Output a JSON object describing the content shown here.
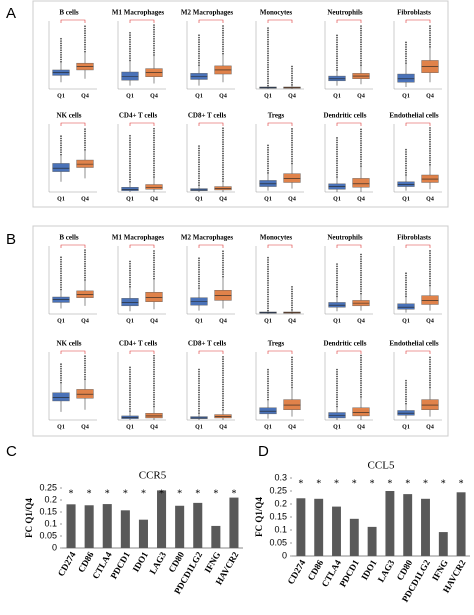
{
  "panel_labels": [
    "A",
    "B",
    "C",
    "D"
  ],
  "chart_data": [
    {
      "type": "box",
      "title": "B cells",
      "categories": [
        "Q1",
        "Q4"
      ],
      "ylim": [
        0,
        1
      ],
      "boxes": [
        {
          "color": "#4a72b8",
          "values": [
            0.1,
            0.2,
            0.24,
            0.28,
            0.4,
            0.75
          ]
        },
        {
          "color": "#e0824a",
          "values": [
            0.15,
            0.28,
            0.33,
            0.38,
            0.55,
            0.95
          ]
        }
      ]
    },
    {
      "type": "box",
      "title": "M1 Macrophages",
      "categories": [
        "Q1",
        "Q4"
      ],
      "ylim": [
        0,
        1
      ],
      "boxes": [
        {
          "color": "#4a72b8",
          "values": [
            0.05,
            0.13,
            0.18,
            0.25,
            0.42,
            0.85
          ]
        },
        {
          "color": "#e0824a",
          "values": [
            0.08,
            0.18,
            0.24,
            0.3,
            0.5,
            0.95
          ]
        }
      ]
    },
    {
      "type": "box",
      "title": "M2 Macrophages",
      "categories": [
        "Q1",
        "Q4"
      ],
      "ylim": [
        0,
        1
      ],
      "boxes": [
        {
          "color": "#4a72b8",
          "values": [
            0.05,
            0.14,
            0.18,
            0.23,
            0.35,
            0.8
          ]
        },
        {
          "color": "#e0824a",
          "values": [
            0.1,
            0.22,
            0.28,
            0.34,
            0.52,
            0.95
          ]
        }
      ]
    },
    {
      "type": "box",
      "title": "Monocytes",
      "categories": [
        "Q1",
        "Q4"
      ],
      "ylim": [
        0,
        1
      ],
      "boxes": [
        {
          "color": "#4a72b8",
          "values": [
            0,
            0.01,
            0.02,
            0.03,
            0.05,
            0.9
          ]
        },
        {
          "color": "#e0824a",
          "values": [
            0,
            0.01,
            0.02,
            0.03,
            0.06,
            0.35
          ]
        }
      ]
    },
    {
      "type": "box",
      "title": "Neutrophils",
      "categories": [
        "Q1",
        "Q4"
      ],
      "ylim": [
        0,
        1
      ],
      "boxes": [
        {
          "color": "#4a72b8",
          "values": [
            0.05,
            0.12,
            0.15,
            0.19,
            0.28,
            0.8
          ]
        },
        {
          "color": "#e0824a",
          "values": [
            0.07,
            0.15,
            0.19,
            0.23,
            0.35,
            0.95
          ]
        }
      ]
    },
    {
      "type": "box",
      "title": "Fibroblasts",
      "categories": [
        "Q1",
        "Q4"
      ],
      "ylim": [
        0,
        1
      ],
      "boxes": [
        {
          "color": "#4a72b8",
          "values": [
            0.03,
            0.1,
            0.15,
            0.22,
            0.38,
            0.7
          ]
        },
        {
          "color": "#e0824a",
          "values": [
            0.1,
            0.24,
            0.33,
            0.42,
            0.62,
            0.95
          ]
        }
      ]
    },
    {
      "type": "box",
      "title": "NK cells",
      "categories": [
        "Q1",
        "Q4"
      ],
      "ylim": [
        0,
        1
      ],
      "boxes": [
        {
          "color": "#4a72b8",
          "values": [
            0.15,
            0.3,
            0.35,
            0.42,
            0.55,
            0.85
          ]
        },
        {
          "color": "#e0824a",
          "values": [
            0.2,
            0.36,
            0.41,
            0.47,
            0.62,
            0.95
          ]
        }
      ]
    },
    {
      "type": "box",
      "title": "CD4+ T cells",
      "categories": [
        "Q1",
        "Q4"
      ],
      "ylim": [
        0,
        1
      ],
      "boxes": [
        {
          "color": "#4a72b8",
          "values": [
            0,
            0.02,
            0.04,
            0.07,
            0.15,
            0.85
          ]
        },
        {
          "color": "#e0824a",
          "values": [
            0,
            0.04,
            0.07,
            0.11,
            0.22,
            0.95
          ]
        }
      ]
    },
    {
      "type": "box",
      "title": "CD8+ T cells",
      "categories": [
        "Q1",
        "Q4"
      ],
      "ylim": [
        0,
        1
      ],
      "boxes": [
        {
          "color": "#4a72b8",
          "values": [
            0,
            0.02,
            0.03,
            0.05,
            0.1,
            0.7
          ]
        },
        {
          "color": "#e0824a",
          "values": [
            0,
            0.03,
            0.05,
            0.08,
            0.16,
            0.95
          ]
        }
      ]
    },
    {
      "type": "box",
      "title": "Tregs",
      "categories": [
        "Q1",
        "Q4"
      ],
      "ylim": [
        0,
        1
      ],
      "boxes": [
        {
          "color": "#4a72b8",
          "values": [
            0.02,
            0.08,
            0.12,
            0.17,
            0.28,
            0.7
          ]
        },
        {
          "color": "#e0824a",
          "values": [
            0.05,
            0.14,
            0.2,
            0.27,
            0.42,
            0.95
          ]
        }
      ]
    },
    {
      "type": "box",
      "title": "Dendritic cells",
      "categories": [
        "Q1",
        "Q4"
      ],
      "ylim": [
        0,
        1
      ],
      "boxes": [
        {
          "color": "#4a72b8",
          "values": [
            0,
            0.04,
            0.08,
            0.12,
            0.22,
            0.8
          ]
        },
        {
          "color": "#e0824a",
          "values": [
            0,
            0.07,
            0.12,
            0.2,
            0.38,
            0.95
          ]
        }
      ]
    },
    {
      "type": "box",
      "title": "Endothelial cells",
      "categories": [
        "Q1",
        "Q4"
      ],
      "ylim": [
        0,
        1
      ],
      "boxes": [
        {
          "color": "#4a72b8",
          "values": [
            0.02,
            0.08,
            0.11,
            0.15,
            0.25,
            0.65
          ]
        },
        {
          "color": "#e0824a",
          "values": [
            0.04,
            0.14,
            0.19,
            0.25,
            0.4,
            0.95
          ]
        }
      ]
    },
    {
      "type": "box",
      "title": "B cells",
      "categories": [
        "Q1",
        "Q4"
      ],
      "ylim": [
        0,
        1
      ],
      "boxes": [
        {
          "color": "#4a72b8",
          "values": [
            0.08,
            0.17,
            0.21,
            0.25,
            0.36,
            0.85
          ]
        },
        {
          "color": "#e0824a",
          "values": [
            0.12,
            0.24,
            0.29,
            0.34,
            0.5,
            0.95
          ]
        }
      ]
    },
    {
      "type": "box",
      "title": "M1 Macrophages",
      "categories": [
        "Q1",
        "Q4"
      ],
      "ylim": [
        0,
        1
      ],
      "boxes": [
        {
          "color": "#4a72b8",
          "values": [
            0.04,
            0.12,
            0.17,
            0.23,
            0.4,
            0.8
          ]
        },
        {
          "color": "#e0824a",
          "values": [
            0.07,
            0.18,
            0.24,
            0.32,
            0.52,
            0.95
          ]
        }
      ]
    },
    {
      "type": "box",
      "title": "M2 Macrophages",
      "categories": [
        "Q1",
        "Q4"
      ],
      "ylim": [
        0,
        1
      ],
      "boxes": [
        {
          "color": "#4a72b8",
          "values": [
            0.05,
            0.13,
            0.18,
            0.24,
            0.38,
            0.85
          ]
        },
        {
          "color": "#e0824a",
          "values": [
            0.08,
            0.2,
            0.27,
            0.35,
            0.55,
            0.95
          ]
        }
      ]
    },
    {
      "type": "box",
      "title": "Monocytes",
      "categories": [
        "Q1",
        "Q4"
      ],
      "ylim": [
        0,
        1
      ],
      "boxes": [
        {
          "color": "#4a72b8",
          "values": [
            0,
            0.01,
            0.02,
            0.03,
            0.05,
            0.85
          ]
        },
        {
          "color": "#e0824a",
          "values": [
            0,
            0.01,
            0.02,
            0.03,
            0.06,
            0.4
          ]
        }
      ]
    },
    {
      "type": "box",
      "title": "Neutrophils",
      "categories": [
        "Q1",
        "Q4"
      ],
      "ylim": [
        0,
        1
      ],
      "boxes": [
        {
          "color": "#4a72b8",
          "values": [
            0.04,
            0.1,
            0.13,
            0.17,
            0.26,
            0.75
          ]
        },
        {
          "color": "#e0824a",
          "values": [
            0.05,
            0.12,
            0.16,
            0.2,
            0.3,
            0.9
          ]
        }
      ]
    },
    {
      "type": "box",
      "title": "Fibroblasts",
      "categories": [
        "Q1",
        "Q4"
      ],
      "ylim": [
        0,
        1
      ],
      "boxes": [
        {
          "color": "#4a72b8",
          "values": [
            0.02,
            0.07,
            0.1,
            0.15,
            0.26,
            0.6
          ]
        },
        {
          "color": "#e0824a",
          "values": [
            0.05,
            0.14,
            0.2,
            0.27,
            0.42,
            0.95
          ]
        }
      ]
    },
    {
      "type": "box",
      "title": "NK cells",
      "categories": [
        "Q1",
        "Q4"
      ],
      "ylim": [
        0,
        1
      ],
      "boxes": [
        {
          "color": "#4a72b8",
          "values": [
            0.12,
            0.28,
            0.33,
            0.4,
            0.55,
            0.85
          ]
        },
        {
          "color": "#e0824a",
          "values": [
            0.15,
            0.32,
            0.38,
            0.45,
            0.6,
            0.95
          ]
        }
      ]
    },
    {
      "type": "box",
      "title": "CD4+ T cells",
      "categories": [
        "Q1",
        "Q4"
      ],
      "ylim": [
        0,
        1
      ],
      "boxes": [
        {
          "color": "#4a72b8",
          "values": [
            0,
            0.02,
            0.04,
            0.06,
            0.13,
            0.8
          ]
        },
        {
          "color": "#e0824a",
          "values": [
            0,
            0.03,
            0.06,
            0.1,
            0.2,
            0.95
          ]
        }
      ]
    },
    {
      "type": "box",
      "title": "CD8+ T cells",
      "categories": [
        "Q1",
        "Q4"
      ],
      "ylim": [
        0,
        1
      ],
      "boxes": [
        {
          "color": "#4a72b8",
          "values": [
            0,
            0.02,
            0.03,
            0.05,
            0.1,
            0.75
          ]
        },
        {
          "color": "#e0824a",
          "values": [
            0,
            0.03,
            0.05,
            0.08,
            0.15,
            0.95
          ]
        }
      ]
    },
    {
      "type": "box",
      "title": "Tregs",
      "categories": [
        "Q1",
        "Q4"
      ],
      "ylim": [
        0,
        1
      ],
      "boxes": [
        {
          "color": "#4a72b8",
          "values": [
            0.02,
            0.09,
            0.13,
            0.18,
            0.3,
            0.75
          ]
        },
        {
          "color": "#e0824a",
          "values": [
            0.05,
            0.15,
            0.22,
            0.3,
            0.48,
            0.95
          ]
        }
      ]
    },
    {
      "type": "box",
      "title": "Dendritic cells",
      "categories": [
        "Q1",
        "Q4"
      ],
      "ylim": [
        0,
        1
      ],
      "boxes": [
        {
          "color": "#4a72b8",
          "values": [
            0,
            0.03,
            0.07,
            0.11,
            0.2,
            0.75
          ]
        },
        {
          "color": "#e0824a",
          "values": [
            0,
            0.06,
            0.11,
            0.18,
            0.34,
            0.95
          ]
        }
      ]
    },
    {
      "type": "box",
      "title": "Endothelial cells",
      "categories": [
        "Q1",
        "Q4"
      ],
      "ylim": [
        0,
        1
      ],
      "boxes": [
        {
          "color": "#4a72b8",
          "values": [
            0.02,
            0.07,
            0.1,
            0.14,
            0.24,
            0.6
          ]
        },
        {
          "color": "#e0824a",
          "values": [
            0.05,
            0.15,
            0.22,
            0.3,
            0.48,
            0.95
          ]
        }
      ]
    },
    {
      "type": "bar",
      "title": "CCR5",
      "y_label": "FC Q1/Q4",
      "color": "#595959",
      "categories": [
        "CD274",
        "CD86",
        "CTLA4",
        "PDCD1",
        "IDO1",
        "LAG3",
        "CD80",
        "PDCD1LG2",
        "IFNG",
        "HAVCR2"
      ],
      "values": [
        0.182,
        0.178,
        0.183,
        0.157,
        0.118,
        0.24,
        0.176,
        0.188,
        0.092,
        0.21
      ],
      "markers": [
        "*",
        "*",
        "*",
        "*",
        "*",
        "*",
        "*",
        "*",
        "*",
        "*"
      ],
      "ylim": [
        0,
        0.25
      ],
      "yticks": [
        0,
        0.05,
        0.1,
        0.15,
        0.2,
        0.25
      ]
    },
    {
      "type": "bar",
      "title": "CCL5",
      "y_label": "FC Q1/Q4",
      "color": "#595959",
      "categories": [
        "CD274",
        "CD86",
        "CTLA4",
        "PDCD1",
        "IDO1",
        "LAG3",
        "CD80",
        "PDCD1LG2",
        "IFNG",
        "HAVCR2"
      ],
      "values": [
        0.222,
        0.22,
        0.19,
        0.143,
        0.112,
        0.25,
        0.238,
        0.22,
        0.092,
        0.245
      ],
      "markers": [
        "*",
        "*",
        "*",
        "*",
        "*",
        "*",
        "*",
        "*",
        "*",
        "*"
      ],
      "ylim": [
        0,
        0.3
      ],
      "yticks": [
        0,
        0.05,
        0.1,
        0.15,
        0.2,
        0.25,
        0.3
      ]
    }
  ]
}
